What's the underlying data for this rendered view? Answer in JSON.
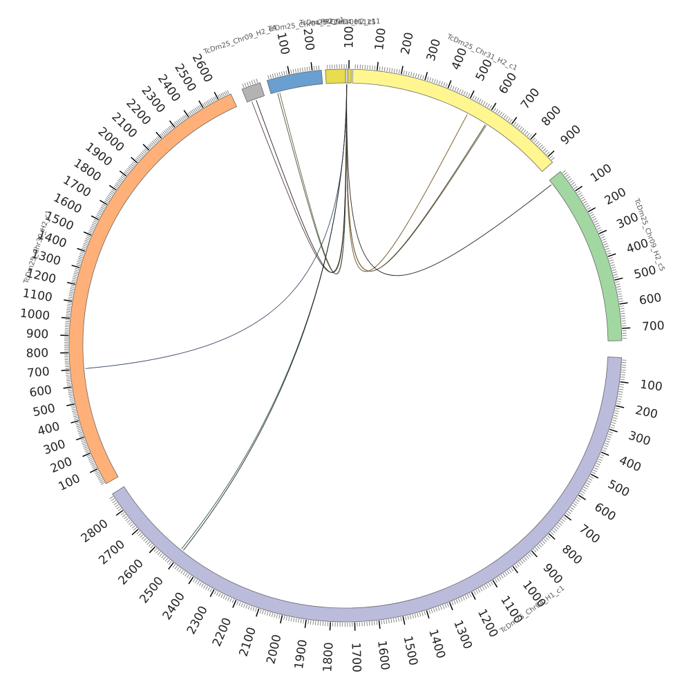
{
  "diagram": {
    "type": "circos",
    "tick_interval_major": 100,
    "tick_interval_minor": 10,
    "segments": [
      {
        "id": "S5",
        "name": "TcDm25_Chr31_H2_c1",
        "length": 930,
        "color": "#fff68f",
        "ticks": [
          "100",
          "200",
          "300",
          "400",
          "500",
          "600",
          "700",
          "800",
          "900"
        ]
      },
      {
        "id": "S6",
        "name": "TcDm25_Chr09_H2_c5",
        "length": 750,
        "color": "#a2d7a2",
        "ticks": [
          "100",
          "200",
          "300",
          "400",
          "500",
          "600",
          "700"
        ]
      },
      {
        "id": "S7",
        "name": "TcDm25_Chr04_H1_c1",
        "length": 2880,
        "color": "#bbbbdb",
        "ticks": [
          "100",
          "200",
          "300",
          "400",
          "500",
          "600",
          "700",
          "800",
          "900",
          "1000",
          "1100",
          "1200",
          "1300",
          "1400",
          "1500",
          "1600",
          "1700",
          "1800",
          "1900",
          "2000",
          "2100",
          "2200",
          "2300",
          "2400",
          "2500",
          "2600",
          "2700",
          "2800"
        ]
      },
      {
        "id": "S1",
        "name": "TcDm25_Chr30_H2_c1",
        "length": 2680,
        "color": "#ffb078",
        "ticks": [
          "100",
          "200",
          "300",
          "400",
          "500",
          "600",
          "700",
          "800",
          "900",
          "1000",
          "1100",
          "1200",
          "1300",
          "1400",
          "1500",
          "1600",
          "1700",
          "1800",
          "1900",
          "2000",
          "2100",
          "2200",
          "2300",
          "2400",
          "2500",
          "2600"
        ]
      },
      {
        "id": "S2",
        "name": "TcDm25_Chr09_H2_c4",
        "length": 80,
        "color": "#b3b3b3",
        "ticks": []
      },
      {
        "id": "S3",
        "name": "TcDm25_Chr04_H2_c1",
        "length": 240,
        "color": "#699fd1",
        "ticks": [
          "100",
          "200"
        ]
      },
      {
        "id": "S4",
        "name": "TcDm25_Chr04_H2_c11",
        "length": 110,
        "color": "#e8dc4f",
        "ticks": [
          "100"
        ]
      },
      {
        "id": "S0",
        "name": "PRFCI01001125",
        "length": 10,
        "color": "#dddddd",
        "ticks": []
      }
    ],
    "links": [
      {
        "from": [
          "S0",
          5
        ],
        "to": [
          "S5",
          520
        ],
        "color": "#5a4a2a"
      },
      {
        "from": [
          "S0",
          5
        ],
        "to": [
          "S5",
          520
        ],
        "color": "#8a6a3a"
      },
      {
        "from": [
          "S0",
          5
        ],
        "to": [
          "S5",
          610
        ],
        "color": "#3a3a2a"
      },
      {
        "from": [
          "S0",
          5
        ],
        "to": [
          "S5",
          615
        ],
        "color": "#6a5a3a"
      },
      {
        "from": [
          "S0",
          5
        ],
        "to": [
          "S6",
          20
        ],
        "color": "#222222"
      },
      {
        "from": [
          "S0",
          5
        ],
        "to": [
          "S3",
          40
        ],
        "color": "#6a5a3a"
      },
      {
        "from": [
          "S0",
          5
        ],
        "to": [
          "S3",
          30
        ],
        "color": "#3a5a3a"
      },
      {
        "from": [
          "S0",
          5
        ],
        "to": [
          "S2",
          20
        ],
        "color": "#5a3a3a"
      },
      {
        "from": [
          "S0",
          5
        ],
        "to": [
          "S2",
          40
        ],
        "color": "#222222"
      },
      {
        "from": [
          "S0",
          5
        ],
        "to": [
          "S1",
          700
        ],
        "color": "#3a4a6a"
      },
      {
        "from": [
          "S0",
          5
        ],
        "to": [
          "S7",
          2510
        ],
        "color": "#2a5a3a"
      },
      {
        "from": [
          "S0",
          5
        ],
        "to": [
          "S7",
          2500
        ],
        "color": "#222222"
      }
    ]
  }
}
